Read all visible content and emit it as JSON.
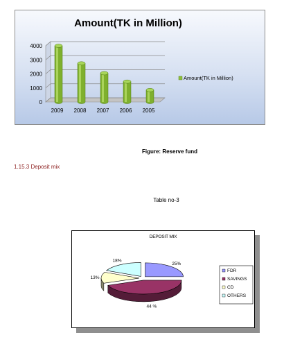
{
  "reserve_figure": {
    "caption": "Figure: Reserve fund"
  },
  "section_heading": "1.15.3 Deposit  mix",
  "table_label": "Table no-3",
  "chart_data": [
    {
      "type": "bar",
      "title": "Amount(TK in Million)",
      "categories": [
        "2009",
        "2008",
        "2007",
        "2006",
        "2005"
      ],
      "series": [
        {
          "name": "Amount(TK in Million)",
          "values": [
            4000,
            2750,
            2050,
            1450,
            850
          ]
        }
      ],
      "y_ticks": [
        "4000",
        "3000",
        "2000",
        "1000",
        "0"
      ],
      "ylim": [
        0,
        4000
      ],
      "grid": true,
      "legend": "right",
      "color": "#8fbf3a"
    },
    {
      "type": "pie",
      "title": "DEPOSIT MIX",
      "slices": [
        {
          "name": "FDR",
          "value": 25,
          "label": "25%",
          "color": "#9999ff"
        },
        {
          "name": "SAVINGS",
          "value": 44,
          "label": "44 %",
          "color": "#993366"
        },
        {
          "name": "CD",
          "value": 13,
          "label": "13%",
          "color": "#ffffcc"
        },
        {
          "name": "OTHERS",
          "value": 18,
          "label": "18%",
          "color": "#ccffff"
        }
      ],
      "legend": "right"
    }
  ]
}
